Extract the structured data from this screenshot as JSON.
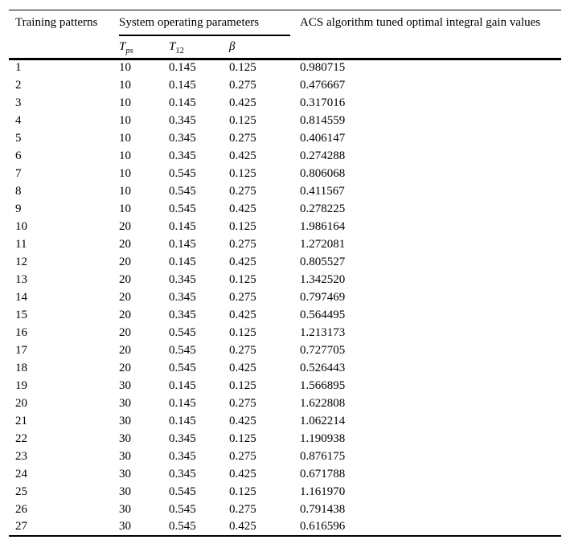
{
  "page": {
    "background_color": "#ffffff",
    "text_color": "#000000",
    "rule_color": "#000000"
  },
  "table": {
    "header": {
      "training_patterns": "Training patterns",
      "system_operating_parameters": "System operating parameters",
      "acs_gain_values": "ACS algorithm tuned optimal integral gain values"
    },
    "subheader": {
      "tps_base": "T",
      "tps_sub": "ps",
      "t12_base": "T",
      "t12_sub": "12",
      "beta": "β"
    },
    "columns": [
      "Training patterns",
      "Tps",
      "T12",
      "β",
      "ACS algorithm tuned optimal integral gain values"
    ],
    "rows": [
      [
        "1",
        "10",
        "0.145",
        "0.125",
        "0.980715"
      ],
      [
        "2",
        "10",
        "0.145",
        "0.275",
        "0.476667"
      ],
      [
        "3",
        "10",
        "0.145",
        "0.425",
        "0.317016"
      ],
      [
        "4",
        "10",
        "0.345",
        "0.125",
        "0.814559"
      ],
      [
        "5",
        "10",
        "0.345",
        "0.275",
        "0.406147"
      ],
      [
        "6",
        "10",
        "0.345",
        "0.425",
        "0.274288"
      ],
      [
        "7",
        "10",
        "0.545",
        "0.125",
        "0.806068"
      ],
      [
        "8",
        "10",
        "0.545",
        "0.275",
        "0.411567"
      ],
      [
        "9",
        "10",
        "0.545",
        "0.425",
        "0.278225"
      ],
      [
        "10",
        "20",
        "0.145",
        "0.125",
        "1.986164"
      ],
      [
        "11",
        "20",
        "0.145",
        "0.275",
        "1.272081"
      ],
      [
        "12",
        "20",
        "0.145",
        "0.425",
        "0.805527"
      ],
      [
        "13",
        "20",
        "0.345",
        "0.125",
        "1.342520"
      ],
      [
        "14",
        "20",
        "0.345",
        "0.275",
        "0.797469"
      ],
      [
        "15",
        "20",
        "0.345",
        "0.425",
        "0.564495"
      ],
      [
        "16",
        "20",
        "0.545",
        "0.125",
        "1.213173"
      ],
      [
        "17",
        "20",
        "0.545",
        "0.275",
        "0.727705"
      ],
      [
        "18",
        "20",
        "0.545",
        "0.425",
        "0.526443"
      ],
      [
        "19",
        "30",
        "0.145",
        "0.125",
        "1.566895"
      ],
      [
        "20",
        "30",
        "0.145",
        "0.275",
        "1.622808"
      ],
      [
        "21",
        "30",
        "0.145",
        "0.425",
        "1.062214"
      ],
      [
        "22",
        "30",
        "0.345",
        "0.125",
        "1.190938"
      ],
      [
        "23",
        "30",
        "0.345",
        "0.275",
        "0.876175"
      ],
      [
        "24",
        "30",
        "0.345",
        "0.425",
        "0.671788"
      ],
      [
        "25",
        "30",
        "0.545",
        "0.125",
        "1.161970"
      ],
      [
        "26",
        "30",
        "0.545",
        "0.275",
        "0.791438"
      ],
      [
        "27",
        "30",
        "0.545",
        "0.425",
        "0.616596"
      ]
    ]
  }
}
